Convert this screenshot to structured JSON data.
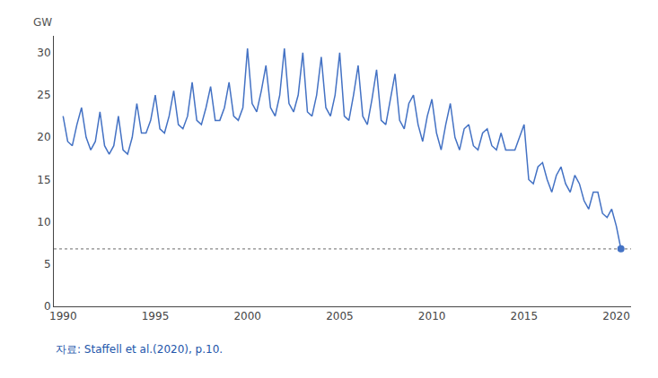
{
  "chart_data": {
    "type": "line",
    "ylabel": "GW",
    "source": "자료: Staffell et al.(2020), p.10.",
    "source_color": "#2255aa",
    "color": "#4472C4",
    "grid": false,
    "xlim": [
      1989.5,
      2020.8
    ],
    "xticks": [
      1990,
      1995,
      2000,
      2005,
      2010,
      2015,
      2020
    ],
    "ylim": [
      0,
      32
    ],
    "yticks": [
      0,
      5,
      10,
      15,
      20,
      25,
      30
    ],
    "reference_line": {
      "y": 6.8,
      "color": "#888888",
      "line_style": "dotted"
    },
    "endpoint": {
      "x": 2020.25,
      "y": 6.8
    },
    "x": [
      1990.0,
      1990.25,
      1990.5,
      1990.75,
      1991.0,
      1991.25,
      1991.5,
      1991.75,
      1992.0,
      1992.25,
      1992.5,
      1992.75,
      1993.0,
      1993.25,
      1993.5,
      1993.75,
      1994.0,
      1994.25,
      1994.5,
      1994.75,
      1995.0,
      1995.25,
      1995.5,
      1995.75,
      1996.0,
      1996.25,
      1996.5,
      1996.75,
      1997.0,
      1997.25,
      1997.5,
      1997.75,
      1998.0,
      1998.25,
      1998.5,
      1998.75,
      1999.0,
      1999.25,
      1999.5,
      1999.75,
      2000.0,
      2000.25,
      2000.5,
      2000.75,
      2001.0,
      2001.25,
      2001.5,
      2001.75,
      2002.0,
      2002.25,
      2002.5,
      2002.75,
      2003.0,
      2003.25,
      2003.5,
      2003.75,
      2004.0,
      2004.25,
      2004.5,
      2004.75,
      2005.0,
      2005.25,
      2005.5,
      2005.75,
      2006.0,
      2006.25,
      2006.5,
      2006.75,
      2007.0,
      2007.25,
      2007.5,
      2007.75,
      2008.0,
      2008.25,
      2008.5,
      2008.75,
      2009.0,
      2009.25,
      2009.5,
      2009.75,
      2010.0,
      2010.25,
      2010.5,
      2010.75,
      2011.0,
      2011.25,
      2011.5,
      2011.75,
      2012.0,
      2012.25,
      2012.5,
      2012.75,
      2013.0,
      2013.25,
      2013.5,
      2013.75,
      2014.0,
      2014.25,
      2014.5,
      2014.75,
      2015.0,
      2015.25,
      2015.5,
      2015.75,
      2016.0,
      2016.25,
      2016.5,
      2016.75,
      2017.0,
      2017.25,
      2017.5,
      2017.75,
      2018.0,
      2018.25,
      2018.5,
      2018.75,
      2019.0,
      2019.25,
      2019.5,
      2019.75,
      2020.0,
      2020.25
    ],
    "values": [
      22.5,
      19.5,
      19.0,
      21.5,
      23.5,
      20.0,
      18.5,
      19.5,
      23.0,
      19.0,
      18.0,
      19.0,
      22.5,
      18.5,
      18.0,
      20.0,
      24.0,
      20.5,
      20.5,
      22.0,
      25.0,
      21.0,
      20.5,
      22.5,
      25.5,
      21.5,
      21.0,
      22.5,
      26.5,
      22.0,
      21.5,
      23.5,
      26.0,
      22.0,
      22.0,
      23.5,
      26.5,
      22.5,
      22.0,
      23.5,
      30.5,
      24.0,
      23.0,
      25.5,
      28.5,
      23.5,
      22.5,
      25.0,
      30.5,
      24.0,
      23.0,
      25.0,
      30.0,
      23.0,
      22.5,
      25.0,
      29.5,
      23.5,
      22.5,
      25.0,
      30.0,
      22.5,
      22.0,
      25.0,
      28.5,
      22.5,
      21.5,
      24.5,
      28.0,
      22.0,
      21.5,
      24.5,
      27.5,
      22.0,
      21.0,
      24.0,
      25.0,
      21.5,
      19.5,
      22.5,
      24.5,
      20.5,
      18.5,
      21.5,
      24.0,
      20.0,
      18.5,
      21.0,
      21.5,
      19.0,
      18.5,
      20.5,
      21.0,
      19.0,
      18.5,
      20.5,
      18.5,
      18.5,
      18.5,
      20.0,
      21.5,
      15.0,
      14.5,
      16.5,
      17.0,
      15.0,
      13.5,
      15.5,
      16.5,
      14.5,
      13.5,
      15.5,
      14.5,
      12.5,
      11.5,
      13.5,
      13.5,
      11.0,
      10.5,
      11.5,
      9.5,
      6.8
    ]
  }
}
